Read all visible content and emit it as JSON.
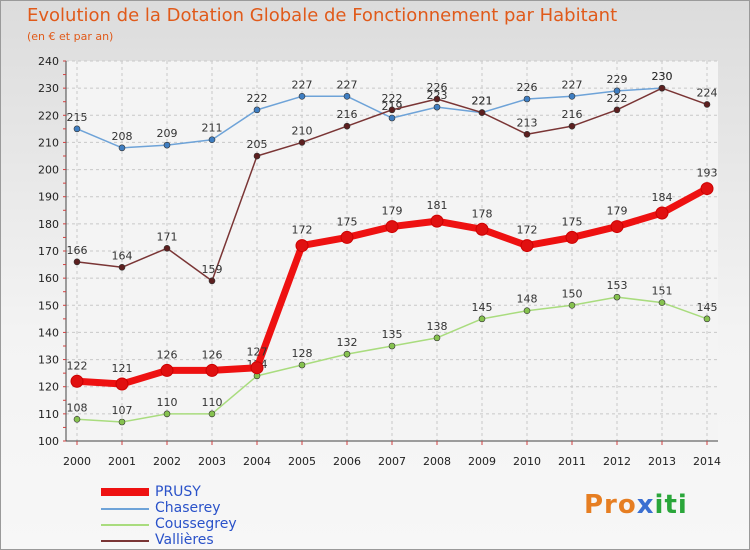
{
  "title": "Evolution de la Dotation Globale de Fonctionnement par Habitant",
  "subtitle": "(en € et par an)",
  "brand": {
    "part1": "Pro",
    "part2": "x",
    "part3": "iti"
  },
  "chart_data": {
    "type": "line",
    "title": "Evolution de la Dotation Globale de Fonctionnement par Habitant",
    "subtitle": "(en € et par an)",
    "x": [
      "2000",
      "2001",
      "2002",
      "2003",
      "2004",
      "2005",
      "2006",
      "2007",
      "2008",
      "2009",
      "2010",
      "2011",
      "2012",
      "2013",
      "2014"
    ],
    "ylim": [
      100,
      240
    ],
    "yticks": [
      100,
      110,
      120,
      130,
      140,
      150,
      160,
      170,
      180,
      190,
      200,
      210,
      220,
      230,
      240
    ],
    "grid": true,
    "legend": "bottom-left",
    "series": [
      {
        "name": "Chaserey",
        "color": "#6ea3d8",
        "marker": "#3f7ec2",
        "values": [
          215,
          208,
          209,
          211,
          222,
          227,
          227,
          219,
          223,
          221,
          226,
          227,
          229,
          230,
          null
        ],
        "labels": [
          215,
          208,
          209,
          211,
          222,
          227,
          227,
          219,
          223,
          221,
          226,
          227,
          229,
          230,
          null
        ]
      },
      {
        "name": "Coussegrey",
        "color": "#a9dc7e",
        "marker": "#86c24f",
        "values": [
          108,
          107,
          110,
          110,
          124,
          128,
          132,
          135,
          138,
          145,
          148,
          150,
          153,
          151,
          145
        ],
        "labels": [
          108,
          107,
          110,
          110,
          124,
          128,
          132,
          135,
          138,
          145,
          148,
          150,
          153,
          151,
          145
        ]
      },
      {
        "name": "Vallières",
        "color": "#7a3535",
        "marker": "#5c1f1f",
        "values": [
          166,
          164,
          171,
          159,
          205,
          210,
          216,
          222,
          226,
          221,
          213,
          216,
          222,
          230,
          224
        ],
        "labels": [
          166,
          164,
          171,
          159,
          205,
          210,
          216,
          222,
          226,
          221,
          213,
          216,
          222,
          230,
          224
        ]
      },
      {
        "name": "PRUSY",
        "color": "#ee1111",
        "marker": "#e01010",
        "values": [
          122,
          121,
          126,
          126,
          127,
          172,
          175,
          179,
          181,
          178,
          172,
          175,
          179,
          184,
          193
        ],
        "labels": [
          122,
          121,
          126,
          126,
          127,
          172,
          175,
          179,
          181,
          178,
          172,
          175,
          179,
          184,
          193
        ]
      }
    ]
  }
}
